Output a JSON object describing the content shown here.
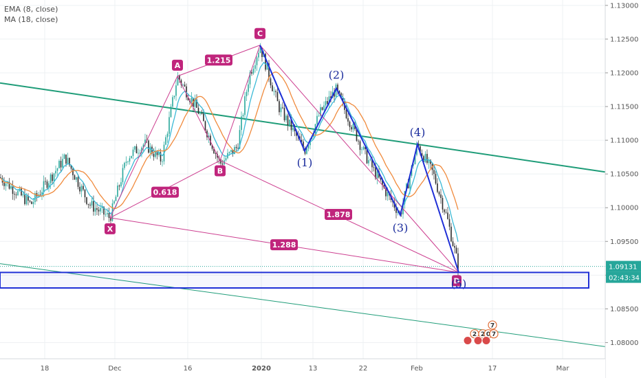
{
  "legend": {
    "ema": "EMA (8, close)",
    "ma": "MA (18, close)"
  },
  "colors": {
    "pattern": "#cc3d8f",
    "label_bg": "#c0257c",
    "wave": "#1f2fd6",
    "wave_text": "#1a2b9c",
    "trend": "#1e9c78",
    "ema": "#3ab9d6",
    "ma": "#f08a3c",
    "bull": "#26a69a",
    "bear": "#2b2b2b",
    "price_badge": "#26a69a"
  },
  "chart_data": {
    "type": "candlestick",
    "x_ticks": [
      "18",
      "Dec",
      "16",
      "2020",
      "13",
      "22",
      "Feb",
      "17",
      "Mar"
    ],
    "y_ticks": [
      "1.13000",
      "1.12500",
      "1.12000",
      "1.11500",
      "1.11000",
      "1.10500",
      "1.10000",
      "1.09500",
      "1.09000",
      "1.08500",
      "1.08000"
    ],
    "y_tick_values": [
      1.13,
      1.125,
      1.12,
      1.115,
      1.11,
      1.105,
      1.1,
      1.095,
      1.09,
      1.085,
      1.08
    ],
    "ylim": [
      1.0776,
      1.1308
    ],
    "last_price": "1.09131",
    "last_price_value": 1.0913,
    "countdown": "02:43:34",
    "indicators": [
      "EMA (8, close)",
      "MA (18, close)"
    ],
    "price_anchors": [
      {
        "x": 0,
        "y": 1.1045
      },
      {
        "x": 45,
        "y": 1.1005
      },
      {
        "x": 95,
        "y": 1.1075
      },
      {
        "x": 130,
        "y": 1.1005
      },
      {
        "x": 160,
        "y": 1.0985
      },
      {
        "x": 185,
        "y": 1.1075
      },
      {
        "x": 210,
        "y": 1.1095
      },
      {
        "x": 235,
        "y": 1.107
      },
      {
        "x": 258,
        "y": 1.1195
      },
      {
        "x": 290,
        "y": 1.114
      },
      {
        "x": 320,
        "y": 1.1065
      },
      {
        "x": 345,
        "y": 1.109
      },
      {
        "x": 362,
        "y": 1.1195
      },
      {
        "x": 378,
        "y": 1.124
      },
      {
        "x": 405,
        "y": 1.115
      },
      {
        "x": 443,
        "y": 1.1085
      },
      {
        "x": 465,
        "y": 1.114
      },
      {
        "x": 488,
        "y": 1.1175
      },
      {
        "x": 530,
        "y": 1.108
      },
      {
        "x": 560,
        "y": 1.1025
      },
      {
        "x": 582,
        "y": 1.099
      },
      {
        "x": 607,
        "y": 1.1093
      },
      {
        "x": 630,
        "y": 1.105
      },
      {
        "x": 650,
        "y": 1.0985
      },
      {
        "x": 667,
        "y": 1.091
      }
    ],
    "harmonic_points": [
      {
        "label": "X",
        "x": 160,
        "y": 1.0985
      },
      {
        "label": "A",
        "x": 258,
        "y": 1.1195
      },
      {
        "label": "B",
        "x": 320,
        "y": 1.107
      },
      {
        "label": "C",
        "x": 378,
        "y": 1.1241
      },
      {
        "label": "D",
        "x": 667,
        "y": 1.0904
      }
    ],
    "ratios": [
      {
        "label": "1.215",
        "x": 318,
        "y": 1.1219
      },
      {
        "label": "0.618",
        "x": 240,
        "y": 1.1023
      },
      {
        "label": "1.878",
        "x": 492,
        "y": 1.099
      },
      {
        "label": "1.288",
        "x": 413,
        "y": 1.0945
      }
    ],
    "waves": [
      {
        "label": "(1)",
        "x": 443,
        "y": 1.1084
      },
      {
        "label": "(2)",
        "x": 489,
        "y": 1.1177
      },
      {
        "label": "(3)",
        "x": 582,
        "y": 1.0989
      },
      {
        "label": "(4)",
        "x": 607,
        "y": 1.1094
      },
      {
        "label": "(5)",
        "x": 667,
        "y": 1.0904
      }
    ],
    "support_zone": [
      1.0881,
      1.0904
    ],
    "trendlines": [
      {
        "from": {
          "x": 0,
          "y": 1.1185
        },
        "to": {
          "x": 880,
          "y": 1.1053
        }
      },
      {
        "from": {
          "x": 0,
          "y": 1.0917
        },
        "to": {
          "x": 880,
          "y": 1.0794
        }
      }
    ],
    "events": [
      {
        "label": "7",
        "x": 716,
        "y": 1.0826
      },
      {
        "label": "2",
        "x": 690,
        "y": 1.0813
      },
      {
        "label": "2",
        "x": 702,
        "y": 1.0813
      },
      {
        "label": "0",
        "x": 710,
        "y": 1.0813
      },
      {
        "label": "7",
        "x": 718,
        "y": 1.0813
      }
    ]
  }
}
